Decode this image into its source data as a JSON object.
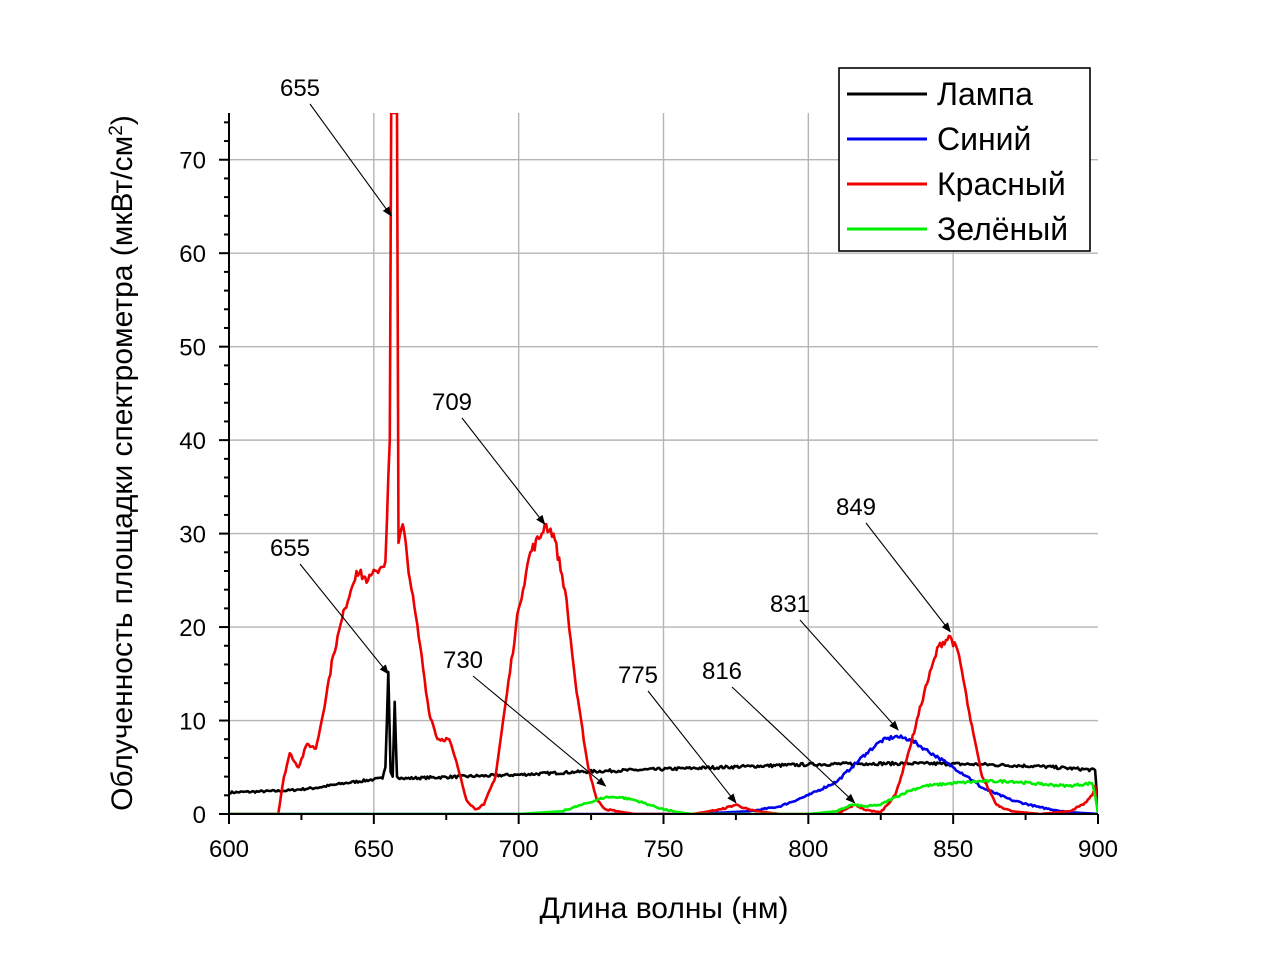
{
  "chart_data": {
    "type": "line",
    "xlabel": "Длина волны (нм)",
    "ylabel": "Облученность площадки спектрометра (мкВт/см",
    "ylabel_sup": "2",
    "ylabel_end": ")",
    "xlim": [
      600,
      900
    ],
    "ylim": [
      0,
      75
    ],
    "xticks": [
      600,
      650,
      700,
      750,
      800,
      850,
      900
    ],
    "yticks": [
      0,
      10,
      20,
      30,
      40,
      50,
      60,
      70
    ],
    "grid": true,
    "legend_position": "top-right",
    "series": [
      {
        "name": "Лампа",
        "color": "#000000",
        "points": [
          [
            600,
            2.3
          ],
          [
            610,
            2.4
          ],
          [
            620,
            2.5
          ],
          [
            630,
            2.8
          ],
          [
            640,
            3.3
          ],
          [
            650,
            3.7
          ],
          [
            653,
            3.8
          ],
          [
            654,
            5
          ],
          [
            655,
            15.2
          ],
          [
            655.8,
            4.5
          ],
          [
            656.5,
            4
          ],
          [
            657.2,
            12
          ],
          [
            658,
            4
          ],
          [
            660,
            3.8
          ],
          [
            680,
            4.0
          ],
          [
            700,
            4.2
          ],
          [
            720,
            4.5
          ],
          [
            740,
            4.7
          ],
          [
            760,
            4.9
          ],
          [
            780,
            5.1
          ],
          [
            800,
            5.3
          ],
          [
            820,
            5.4
          ],
          [
            840,
            5.4
          ],
          [
            860,
            5.3
          ],
          [
            880,
            5.1
          ],
          [
            899,
            4.7
          ],
          [
            899.5,
            2.5
          ],
          [
            900,
            0
          ]
        ]
      },
      {
        "name": "Синий",
        "color": "#0000ee",
        "points": [
          [
            600,
            0
          ],
          [
            760,
            0
          ],
          [
            780,
            0.3
          ],
          [
            790,
            0.8
          ],
          [
            800,
            2
          ],
          [
            810,
            3.5
          ],
          [
            815,
            5
          ],
          [
            820,
            6.5
          ],
          [
            825,
            7.8
          ],
          [
            830,
            8.3
          ],
          [
            835,
            8
          ],
          [
            840,
            7
          ],
          [
            845,
            6
          ],
          [
            850,
            5
          ],
          [
            855,
            4
          ],
          [
            860,
            2.8
          ],
          [
            870,
            1.5
          ],
          [
            880,
            0.7
          ],
          [
            890,
            0.2
          ],
          [
            900,
            0
          ]
        ]
      },
      {
        "name": "Красный",
        "color": "#ee0000",
        "points": [
          [
            600,
            0
          ],
          [
            617,
            0
          ],
          [
            619,
            4
          ],
          [
            621,
            6.5
          ],
          [
            624,
            5
          ],
          [
            627,
            7.5
          ],
          [
            630,
            7
          ],
          [
            632,
            10
          ],
          [
            636,
            17
          ],
          [
            640,
            22
          ],
          [
            644,
            26
          ],
          [
            648,
            25
          ],
          [
            651,
            26
          ],
          [
            654,
            27
          ],
          [
            655.5,
            40
          ],
          [
            656,
            75
          ],
          [
            658,
            75
          ],
          [
            658.5,
            29
          ],
          [
            660,
            31
          ],
          [
            663,
            24
          ],
          [
            666,
            18
          ],
          [
            669,
            11
          ],
          [
            672,
            8
          ],
          [
            676,
            8
          ],
          [
            679,
            5
          ],
          [
            682,
            1.5
          ],
          [
            685,
            0.5
          ],
          [
            688,
            1
          ],
          [
            692,
            4
          ],
          [
            696,
            13
          ],
          [
            700,
            22
          ],
          [
            704,
            28
          ],
          [
            708,
            30
          ],
          [
            709,
            31
          ],
          [
            712,
            30
          ],
          [
            716,
            24
          ],
          [
            720,
            13
          ],
          [
            724,
            5
          ],
          [
            727,
            1.5
          ],
          [
            730,
            0.5
          ],
          [
            740,
            0
          ],
          [
            760,
            0
          ],
          [
            770,
            0.5
          ],
          [
            775,
            1
          ],
          [
            780,
            0.4
          ],
          [
            790,
            0
          ],
          [
            810,
            0
          ],
          [
            816,
            1
          ],
          [
            820,
            0.4
          ],
          [
            825,
            0.2
          ],
          [
            830,
            2
          ],
          [
            835,
            7
          ],
          [
            840,
            13
          ],
          [
            845,
            18
          ],
          [
            849,
            19
          ],
          [
            852,
            17
          ],
          [
            856,
            10
          ],
          [
            860,
            4
          ],
          [
            865,
            1
          ],
          [
            870,
            0.3
          ],
          [
            880,
            0
          ],
          [
            890,
            0.3
          ],
          [
            895,
            1
          ],
          [
            898,
            2
          ],
          [
            899,
            3
          ],
          [
            900,
            0
          ]
        ]
      },
      {
        "name": "Зелёный",
        "color": "#00ee00",
        "points": [
          [
            600,
            0
          ],
          [
            700,
            0
          ],
          [
            715,
            0.3
          ],
          [
            722,
            1
          ],
          [
            730,
            1.8
          ],
          [
            735,
            1.8
          ],
          [
            740,
            1.5
          ],
          [
            745,
            1
          ],
          [
            750,
            0.5
          ],
          [
            755,
            0.2
          ],
          [
            760,
            0
          ],
          [
            800,
            0
          ],
          [
            810,
            0.3
          ],
          [
            815,
            1
          ],
          [
            820,
            0.8
          ],
          [
            825,
            1
          ],
          [
            830,
            1.8
          ],
          [
            835,
            2.5
          ],
          [
            840,
            3
          ],
          [
            850,
            3.3
          ],
          [
            860,
            3.5
          ],
          [
            870,
            3.5
          ],
          [
            880,
            3.2
          ],
          [
            890,
            3
          ],
          [
            898,
            3.3
          ],
          [
            899,
            2
          ],
          [
            900,
            0
          ]
        ]
      }
    ],
    "annotations": [
      {
        "text": "655",
        "point": [
          656,
          64
        ]
      },
      {
        "text": "655",
        "point": [
          655,
          15
        ]
      },
      {
        "text": "709",
        "point": [
          709,
          31
        ]
      },
      {
        "text": "730",
        "point": [
          730,
          3
        ]
      },
      {
        "text": "775",
        "point": [
          775,
          1.2
        ]
      },
      {
        "text": "816",
        "point": [
          816,
          1.2
        ]
      },
      {
        "text": "831",
        "point": [
          831,
          9
        ]
      },
      {
        "text": "849",
        "point": [
          849,
          19.5
        ]
      }
    ]
  }
}
